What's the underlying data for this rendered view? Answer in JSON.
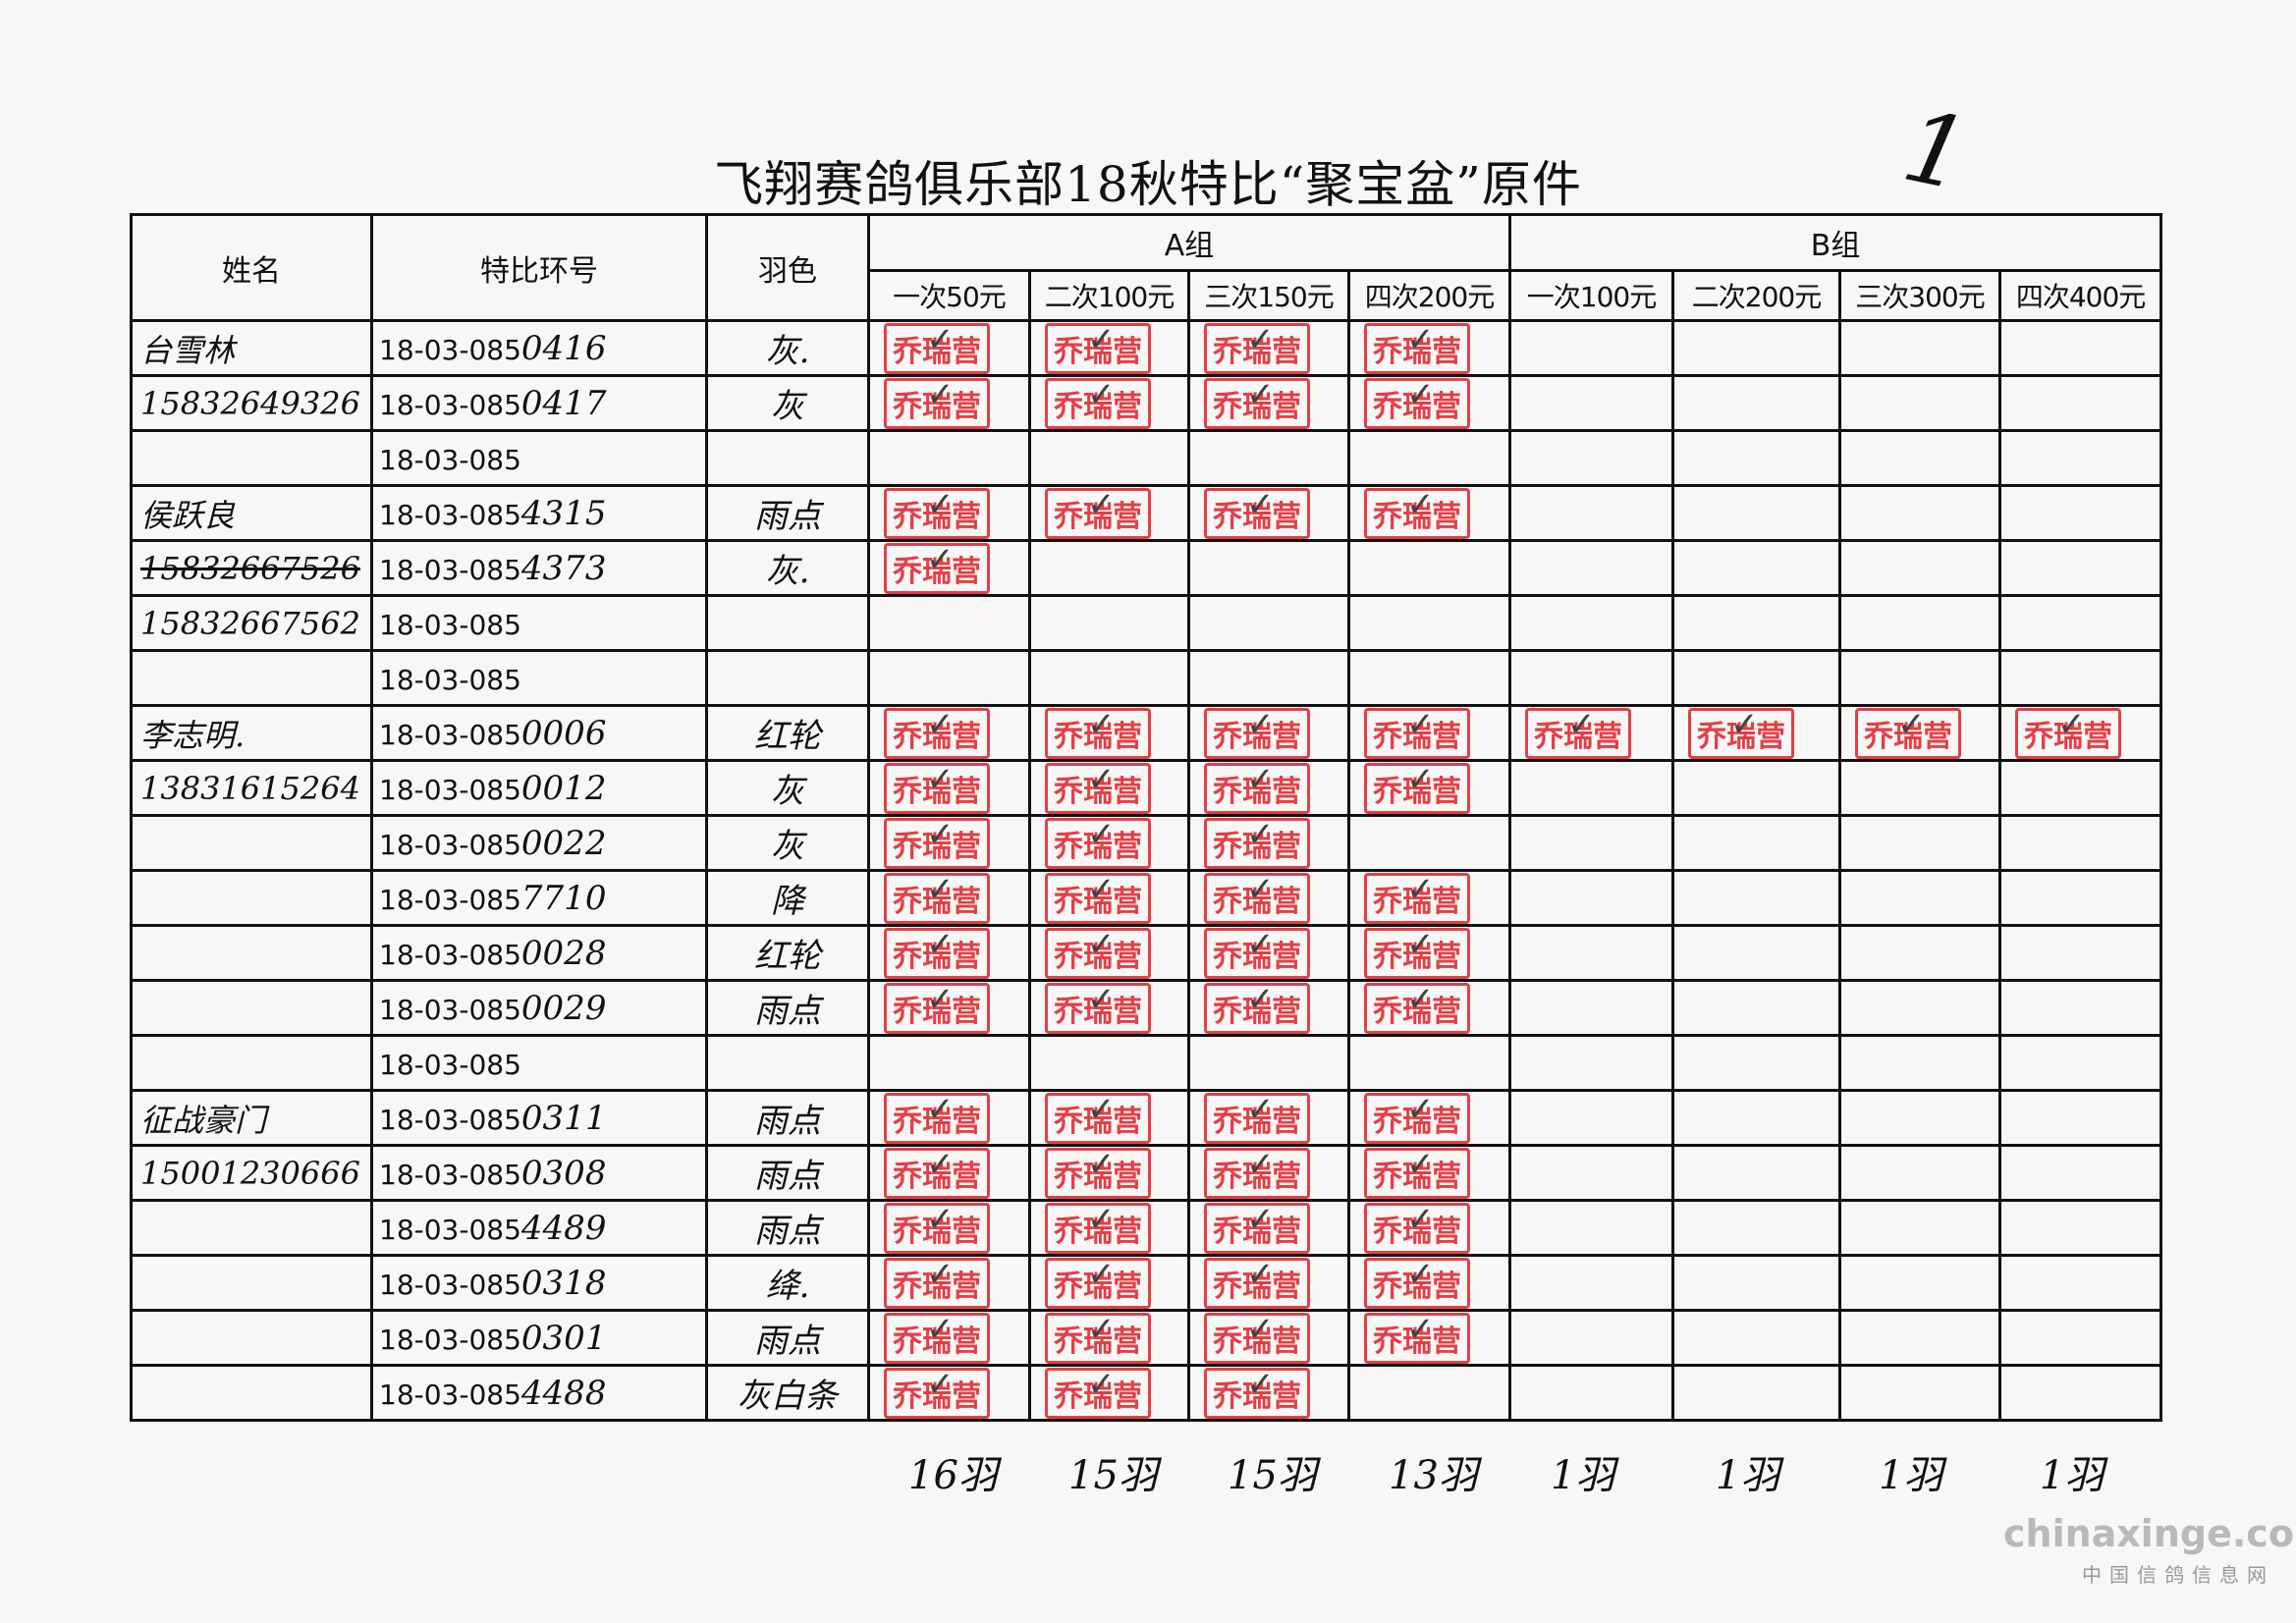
{
  "title": "飞翔赛鸽俱乐部18秋特比“聚宝盆”原件",
  "corner_mark": "1",
  "headers": {
    "name": "姓名",
    "ring": "特比环号",
    "color": "羽色",
    "group_a": "A组",
    "group_b": "B组",
    "a_cols": [
      "一次50元",
      "二次100元",
      "三次150元",
      "四次200元"
    ],
    "b_cols": [
      "一次100元",
      "二次200元",
      "三次300元",
      "四次400元"
    ]
  },
  "stamp_text": "乔瑞营",
  "stamp_color": "#e0202a",
  "rows": [
    {
      "name": "台雪林",
      "ring_prefix": "18-03-085",
      "ring_suffix": "0416",
      "color": "灰.",
      "a": [
        1,
        1,
        1,
        1
      ],
      "b": [
        0,
        0,
        0,
        0
      ]
    },
    {
      "name": "15832649326",
      "ring_prefix": "18-03-085",
      "ring_suffix": "0417",
      "color": "灰",
      "a": [
        1,
        1,
        1,
        1
      ],
      "b": [
        0,
        0,
        0,
        0
      ]
    },
    {
      "name": "",
      "ring_prefix": "18-03-085",
      "ring_suffix": "",
      "color": "",
      "a": [
        0,
        0,
        0,
        0
      ],
      "b": [
        0,
        0,
        0,
        0
      ]
    },
    {
      "name": "侯跃良",
      "ring_prefix": "18-03-085",
      "ring_suffix": "4315",
      "color": "雨点",
      "a": [
        1,
        1,
        1,
        1
      ],
      "b": [
        0,
        0,
        0,
        0
      ]
    },
    {
      "name": "15832667526",
      "name_struck": true,
      "ring_prefix": "18-03-085",
      "ring_suffix": "4373",
      "color": "灰.",
      "a": [
        1,
        0,
        0,
        0
      ],
      "b": [
        0,
        0,
        0,
        0
      ]
    },
    {
      "name": "15832667562",
      "ring_prefix": "18-03-085",
      "ring_suffix": "",
      "color": "",
      "a": [
        0,
        0,
        0,
        0
      ],
      "b": [
        0,
        0,
        0,
        0
      ]
    },
    {
      "name": "",
      "ring_prefix": "18-03-085",
      "ring_suffix": "",
      "color": "",
      "a": [
        0,
        0,
        0,
        0
      ],
      "b": [
        0,
        0,
        0,
        0
      ]
    },
    {
      "name": "李志明.",
      "ring_prefix": "18-03-085",
      "ring_suffix": "0006",
      "color": "红轮",
      "a": [
        1,
        1,
        1,
        1
      ],
      "b": [
        1,
        1,
        1,
        1
      ]
    },
    {
      "name": "13831615264",
      "ring_prefix": "18-03-085",
      "ring_suffix": "0012",
      "color": "灰",
      "a": [
        1,
        1,
        1,
        1
      ],
      "b": [
        0,
        0,
        0,
        0
      ]
    },
    {
      "name": "",
      "ring_prefix": "18-03-085",
      "ring_suffix": "0022",
      "color": "灰",
      "a": [
        1,
        1,
        1,
        0
      ],
      "b": [
        0,
        0,
        0,
        0
      ]
    },
    {
      "name": "",
      "ring_prefix": "18-03-085",
      "ring_suffix": "7710",
      "color": "降",
      "a": [
        1,
        1,
        1,
        1
      ],
      "b": [
        0,
        0,
        0,
        0
      ]
    },
    {
      "name": "",
      "ring_prefix": "18-03-085",
      "ring_suffix": "0028",
      "color": "红轮",
      "a": [
        1,
        1,
        1,
        1
      ],
      "b": [
        0,
        0,
        0,
        0
      ]
    },
    {
      "name": "",
      "ring_prefix": "18-03-085",
      "ring_suffix": "0029",
      "color": "雨点",
      "a": [
        1,
        1,
        1,
        1
      ],
      "b": [
        0,
        0,
        0,
        0
      ]
    },
    {
      "name": "",
      "ring_prefix": "18-03-085",
      "ring_suffix": "",
      "color": "",
      "a": [
        0,
        0,
        0,
        0
      ],
      "b": [
        0,
        0,
        0,
        0
      ]
    },
    {
      "name": "征战豪门",
      "ring_prefix": "18-03-085",
      "ring_suffix": "0311",
      "color": "雨点",
      "a": [
        1,
        1,
        1,
        1
      ],
      "b": [
        0,
        0,
        0,
        0
      ]
    },
    {
      "name": "15001230666",
      "ring_prefix": "18-03-085",
      "ring_suffix": "0308",
      "color": "雨点",
      "a": [
        1,
        1,
        1,
        1
      ],
      "b": [
        0,
        0,
        0,
        0
      ]
    },
    {
      "name": "",
      "ring_prefix": "18-03-085",
      "ring_suffix": "4489",
      "color": "雨点",
      "a": [
        1,
        1,
        1,
        1
      ],
      "b": [
        0,
        0,
        0,
        0
      ]
    },
    {
      "name": "",
      "ring_prefix": "18-03-085",
      "ring_suffix": "0318",
      "color": "绛.",
      "a": [
        1,
        1,
        1,
        1
      ],
      "b": [
        0,
        0,
        0,
        0
      ]
    },
    {
      "name": "",
      "ring_prefix": "18-03-085",
      "ring_suffix": "0301",
      "color": "雨点",
      "a": [
        1,
        1,
        1,
        1
      ],
      "b": [
        0,
        0,
        0,
        0
      ]
    },
    {
      "name": "",
      "ring_prefix": "18-03-085",
      "ring_suffix": "4488",
      "color": "灰白条",
      "a": [
        1,
        1,
        1,
        0
      ],
      "b": [
        0,
        0,
        0,
        0
      ]
    }
  ],
  "totals": [
    "16羽",
    "15羽",
    "15羽",
    "13羽",
    "1羽",
    "1羽",
    "1羽",
    "1羽"
  ],
  "watermark": {
    "site": "chinaxinge.com",
    "name": "中国信鸽信息网"
  }
}
